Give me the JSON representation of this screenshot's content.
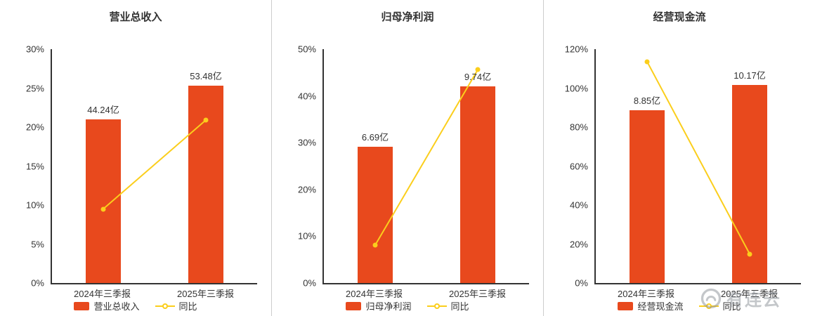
{
  "chart_data": [
    {
      "type": "bar+line",
      "title": "营业总收入",
      "categories": [
        "2024年三季报",
        "2025年三季报"
      ],
      "bars": {
        "name": "营业总收入",
        "amounts": [
          "44.24亿",
          "53.48亿"
        ],
        "axis_heights_pct": [
          21.0,
          25.3
        ]
      },
      "line": {
        "name": "同比",
        "values_pct": [
          9.5,
          20.9
        ]
      },
      "ylim": [
        0,
        30
      ],
      "yticks": [
        0,
        5,
        10,
        15,
        20,
        25,
        30
      ],
      "ytick_suffix": "%",
      "legend_position": "bottom",
      "grid": false
    },
    {
      "type": "bar+line",
      "title": "归母净利润",
      "categories": [
        "2024年三季报",
        "2025年三季报"
      ],
      "bars": {
        "name": "归母净利润",
        "amounts": [
          "6.69亿",
          "9.74亿"
        ],
        "axis_heights_pct": [
          29.1,
          42.1
        ]
      },
      "line": {
        "name": "同比",
        "values_pct": [
          8.1,
          45.6
        ]
      },
      "ylim": [
        0,
        50
      ],
      "yticks": [
        0,
        10,
        20,
        30,
        40,
        50
      ],
      "ytick_suffix": "%",
      "legend_position": "bottom",
      "grid": false
    },
    {
      "type": "bar+line",
      "title": "经营现金流",
      "categories": [
        "2024年三季报",
        "2025年三季报"
      ],
      "bars": {
        "name": "经营现金流",
        "amounts": [
          "8.85亿",
          "10.17亿"
        ],
        "axis_heights_pct": [
          88.5,
          101.7
        ]
      },
      "line": {
        "name": "同比",
        "values_pct": [
          113.6,
          14.9
        ]
      },
      "ylim": [
        0,
        120
      ],
      "yticks": [
        0,
        20,
        40,
        60,
        80,
        100,
        120
      ],
      "ytick_suffix": "%",
      "legend_position": "bottom",
      "grid": false
    }
  ],
  "colors": {
    "bar": "#E8491D",
    "line": "#FBCE1C",
    "axis": "#333333",
    "text": "#333333",
    "divider": "#CCCCCC",
    "watermark": "#8A9097"
  },
  "watermark": {
    "text": "有连云"
  }
}
